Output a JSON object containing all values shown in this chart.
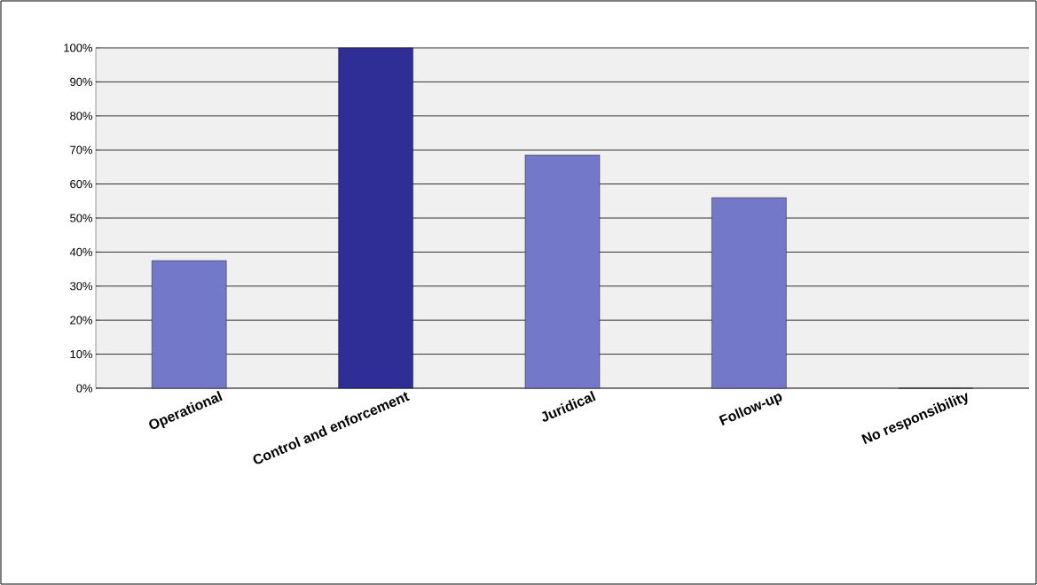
{
  "chart_data": {
    "type": "bar",
    "categories": [
      "Operational",
      "Control and enforcement",
      "Juridical",
      "Follow-up",
      "No responsibility"
    ],
    "values": [
      37.5,
      100,
      68.5,
      56,
      0
    ],
    "colors": [
      "#7478c8",
      "#2e2e96",
      "#7478c8",
      "#7478c8",
      "#7478c8"
    ],
    "ylim": [
      0,
      100
    ],
    "yticks": [
      {
        "value": 0,
        "label": "0%"
      },
      {
        "value": 10,
        "label": "10%"
      },
      {
        "value": 20,
        "label": "20%"
      },
      {
        "value": 30,
        "label": "30%"
      },
      {
        "value": 40,
        "label": "40%"
      },
      {
        "value": 50,
        "label": "50%"
      },
      {
        "value": 60,
        "label": "60%"
      },
      {
        "value": 70,
        "label": "70%"
      },
      {
        "value": 80,
        "label": "80%"
      },
      {
        "value": 90,
        "label": "90%"
      },
      {
        "value": 100,
        "label": "100%"
      }
    ],
    "grid": "y"
  }
}
